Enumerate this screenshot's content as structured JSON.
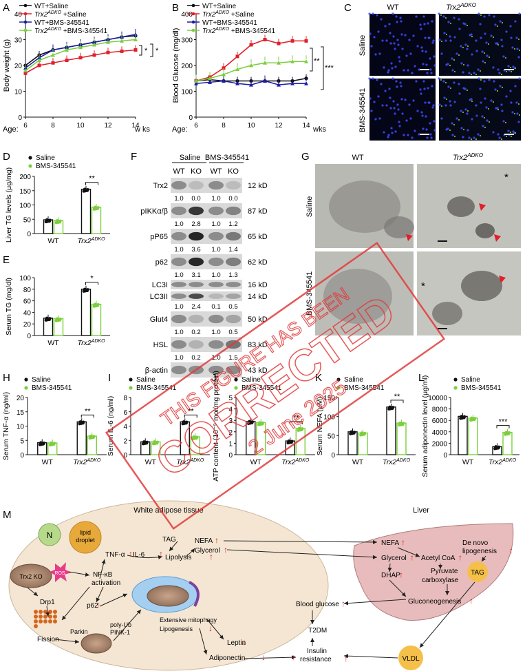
{
  "panels": {
    "A": {
      "letter": "A",
      "ylabel": "Body weight (g)",
      "age_label": "Age:",
      "x_unit": "w  ks",
      "sig1": "*",
      "sig2": "*"
    },
    "B": {
      "letter": "B",
      "ylabel": "Blood Glucose (mg/dl)",
      "age_label": "Age:",
      "x_unit": "wks",
      "sig1": "**",
      "sig2": "***"
    },
    "C": {
      "letter": "C",
      "col1": "WT",
      "col2": "Trx2",
      "col2_sup": "ADKO",
      "row1": "Saline",
      "row2": "BMS-345541"
    },
    "D": {
      "letter": "D"
    },
    "E": {
      "letter": "E"
    },
    "F": {
      "letter": "F",
      "group1": "Saline",
      "group2": "BMS-345541",
      "lanes": [
        "WT",
        "KO",
        "WT",
        "KO"
      ],
      "blots": [
        {
          "name": "Trx2",
          "kd": "12 kD",
          "quant": [
            "1.0",
            "0.0",
            "1.0",
            "0.0"
          ]
        },
        {
          "name": "pIKKα/β",
          "kd": "87 kD",
          "quant": [
            "1.0",
            "2.8",
            "1.0",
            "1.2"
          ]
        },
        {
          "name": "pP65",
          "kd": "65 kD",
          "quant": [
            "1.0",
            "3.6",
            "1.0",
            "1.4"
          ]
        },
        {
          "name": "p62",
          "kd": "62 kD",
          "quant": [
            "1.0",
            "3.1",
            "1.0",
            "1.3"
          ]
        },
        {
          "name": "LC3I",
          "kd": "16 kD",
          "quant": []
        },
        {
          "name": "LC3II",
          "kd": "14 kD",
          "quant": [
            "1.0",
            "2.4",
            "0.1",
            "0.5"
          ]
        },
        {
          "name": "Glut4",
          "kd": "50 kD",
          "quant": [
            "1.0",
            "0.2",
            "1.0",
            "0.5"
          ]
        },
        {
          "name": "HSL",
          "kd": "83 kD",
          "quant": [
            "1.0",
            "0.2",
            "1.0",
            "1.5"
          ]
        },
        {
          "name": "β-actin",
          "kd": "43 kD",
          "quant": []
        }
      ]
    },
    "G": {
      "letter": "G",
      "col1": "WT",
      "col2": "Trx2",
      "col2_sup": "ADKO",
      "row1": "Saline",
      "row2": "BMS-345541",
      "star": "*"
    },
    "H": {
      "letter": "H"
    },
    "I": {
      "letter": "I"
    },
    "J": {
      "letter": "J"
    },
    "K": {
      "letter": "K"
    },
    "L": {
      "letter": "L"
    },
    "M": {
      "letter": "M"
    }
  },
  "chart_data": [
    {
      "id": "A",
      "type": "line",
      "ylabel": "Body weight (g)",
      "xlabel": "Age: wks",
      "x": [
        6,
        7,
        8,
        9,
        10,
        11,
        12,
        13,
        14
      ],
      "ylim": [
        0,
        40
      ],
      "yticks": [
        0,
        10,
        20,
        30,
        40
      ],
      "xticks": [
        6,
        8,
        10,
        12,
        14
      ],
      "series": [
        {
          "name": "WT+Saline",
          "color": "#111111",
          "marker": "circle",
          "values": [
            20,
            24,
            26,
            27,
            28,
            29,
            30,
            31,
            31.5
          ]
        },
        {
          "name": "Trx2ADKO +Saline",
          "color": "#e0202a",
          "marker": "square",
          "values": [
            17,
            20,
            21,
            22,
            23,
            24,
            25,
            25.5,
            26
          ]
        },
        {
          "name": "WT+BMS-345541",
          "color": "#1c1ca8",
          "marker": "triangle",
          "values": [
            19,
            23,
            26,
            27,
            28,
            29,
            30,
            31,
            32
          ]
        },
        {
          "name": "Trx2ADKO +BMS-345541",
          "color": "#7bcf3c",
          "marker": "triangle",
          "values": [
            18,
            22,
            24,
            26,
            27,
            28,
            29,
            29.5,
            30
          ]
        }
      ]
    },
    {
      "id": "B",
      "type": "line",
      "ylabel": "Blood Glucose (mg/dl)",
      "xlabel": "Age: wks",
      "x": [
        6,
        7,
        8,
        9,
        10,
        11,
        12,
        13,
        14
      ],
      "ylim": [
        0,
        400
      ],
      "yticks": [
        0,
        100,
        200,
        300,
        400
      ],
      "xticks": [
        6,
        8,
        10,
        12,
        14
      ],
      "series": [
        {
          "name": "WT+Saline",
          "color": "#111111",
          "marker": "circle",
          "values": [
            140,
            145,
            140,
            140,
            140,
            140,
            140,
            140,
            150
          ]
        },
        {
          "name": "Trx2ADKO +Saline",
          "color": "#e0202a",
          "marker": "square",
          "values": [
            140,
            155,
            190,
            235,
            280,
            300,
            285,
            295,
            295
          ]
        },
        {
          "name": "WT+BMS-345541",
          "color": "#1c1ca8",
          "marker": "triangle",
          "values": [
            130,
            135,
            140,
            130,
            125,
            140,
            125,
            130,
            130
          ]
        },
        {
          "name": "Trx2ADKO +BMS-345541",
          "color": "#7bcf3c",
          "marker": "triangle",
          "values": [
            140,
            150,
            165,
            185,
            200,
            210,
            210,
            215,
            215
          ]
        }
      ]
    },
    {
      "id": "D",
      "type": "bar",
      "ylabel": "Liver TG levels (μg/mg)",
      "ylim": [
        0,
        200
      ],
      "yticks": [
        0,
        50,
        100,
        150,
        200
      ],
      "groups": [
        "WT",
        "Trx2ADKO"
      ],
      "legend": [
        "Saline",
        "BMS-345541"
      ],
      "values": [
        [
          48,
          45
        ],
        [
          155,
          92
        ]
      ],
      "sig": "**"
    },
    {
      "id": "E",
      "type": "bar",
      "ylabel": "Serum TG (mg/dl)",
      "ylim": [
        0,
        100
      ],
      "yticks": [
        0,
        20,
        40,
        60,
        80,
        100
      ],
      "groups": [
        "WT",
        "Trx2ADKO"
      ],
      "values": [
        [
          30,
          29
        ],
        [
          80,
          54
        ]
      ],
      "sig": "*"
    },
    {
      "id": "H",
      "type": "bar",
      "ylabel": "Serum TNF-α (ng/ml)",
      "ylim": [
        0,
        20
      ],
      "yticks": [
        0,
        5,
        10,
        15,
        20
      ],
      "groups": [
        "WT",
        "Trx2ADKO"
      ],
      "legend": [
        "Saline",
        "BMS-345541"
      ],
      "values": [
        [
          4.2,
          4.1
        ],
        [
          11.5,
          6.5
        ]
      ],
      "sig": "**"
    },
    {
      "id": "I",
      "type": "bar",
      "ylabel": "Serum IL-6 (ng/ml)",
      "ylim": [
        0,
        8
      ],
      "yticks": [
        0,
        2,
        4,
        6,
        8
      ],
      "groups": [
        "WT",
        "Trx2ADKO"
      ],
      "legend": [
        "Saline",
        "BMS-345541"
      ],
      "values": [
        [
          1.8,
          1.8
        ],
        [
          4.6,
          2.5
        ]
      ],
      "sig": "**"
    },
    {
      "id": "J",
      "type": "bar",
      "ylabel": "ATP content (10⁻⁹ mol/mg protein)",
      "ylim": [
        0,
        5
      ],
      "yticks": [
        0,
        1,
        2,
        3,
        4,
        5
      ],
      "groups": [
        "WT",
        "Trx2ADKO"
      ],
      "legend": [
        "Saline",
        "BMS-345541"
      ],
      "values": [
        [
          2.9,
          2.8
        ],
        [
          1.2,
          2.3
        ]
      ],
      "sig": "**"
    },
    {
      "id": "K",
      "type": "bar",
      "ylabel": "Serum NEFA (μM)",
      "ylim": [
        0,
        150
      ],
      "yticks": [
        0,
        50,
        100,
        150
      ],
      "groups": [
        "WT",
        "Trx2ADKO"
      ],
      "legend": [
        "Saline",
        "BMS-345541"
      ],
      "values": [
        [
          60,
          57
        ],
        [
          125,
          83
        ]
      ],
      "sig": "**"
    },
    {
      "id": "L",
      "type": "bar",
      "ylabel": "Serum adiponectin level (μg/ml)",
      "ylim": [
        0,
        10000
      ],
      "yticks": [
        0,
        2000,
        4000,
        6000,
        8000,
        10000
      ],
      "groups": [
        "WT",
        "Trx2ADKO"
      ],
      "legend": [
        "Saline",
        "BMS-345541"
      ],
      "values": [
        [
          6700,
          6400
        ],
        [
          1400,
          3900
        ]
      ],
      "sig": "***"
    }
  ],
  "diagram": {
    "title_left": "White adipose tissue",
    "title_right": "Liver",
    "nodes": {
      "n": "N",
      "lipid": "lipid droplet",
      "tag": "TAG",
      "nefa": "NEFA",
      "glycerol": "Glycerol",
      "lipolysis": "Lipolysis",
      "tnf": "TNF-α",
      "il6": "IL-6",
      "trx2ko": "Trx2 KO",
      "ros": "ROS",
      "nfkb1": "NF-κB",
      "nfkb2": "activation",
      "p62": "p62",
      "drp1": "Drp1",
      "fission": "Fission",
      "parkin": "Parkin",
      "polyub": "poly-Ub",
      "pink1": "PINK-1",
      "mitophagy": "Extensive mitophagy",
      "lipogenesis": "Lipogenesis",
      "leptin": "Leptin",
      "adiponectin": "Adiponectin",
      "l_nefa": "NEFA",
      "l_glycerol": "Glycerol",
      "acetyl": "Acetyl CoA",
      "pyruvate1": "Pyruvate",
      "pyruvate2": "carboxylase",
      "dhap": "DHAP",
      "gluconeo": "Gluconeogenesis",
      "denovo1": "De novo",
      "denovo2": "lipogenesis",
      "l_tag": "TAG",
      "bloodglucose": "Blood glucose",
      "t2dm": "T2DM",
      "insulin1": "Insulin",
      "insulin2": "resistance",
      "vldl": "VLDL"
    },
    "colors": {
      "adipose": "#f5e6d3",
      "liver": "#e8bcbc",
      "up": "#d42020",
      "down": "#d42020"
    }
  },
  "watermark": {
    "line1": "THIS FIGURE HAS BEEN",
    "line2": "CORRECTED",
    "line3": "2 June 2025",
    "color": "#e23b3b"
  }
}
